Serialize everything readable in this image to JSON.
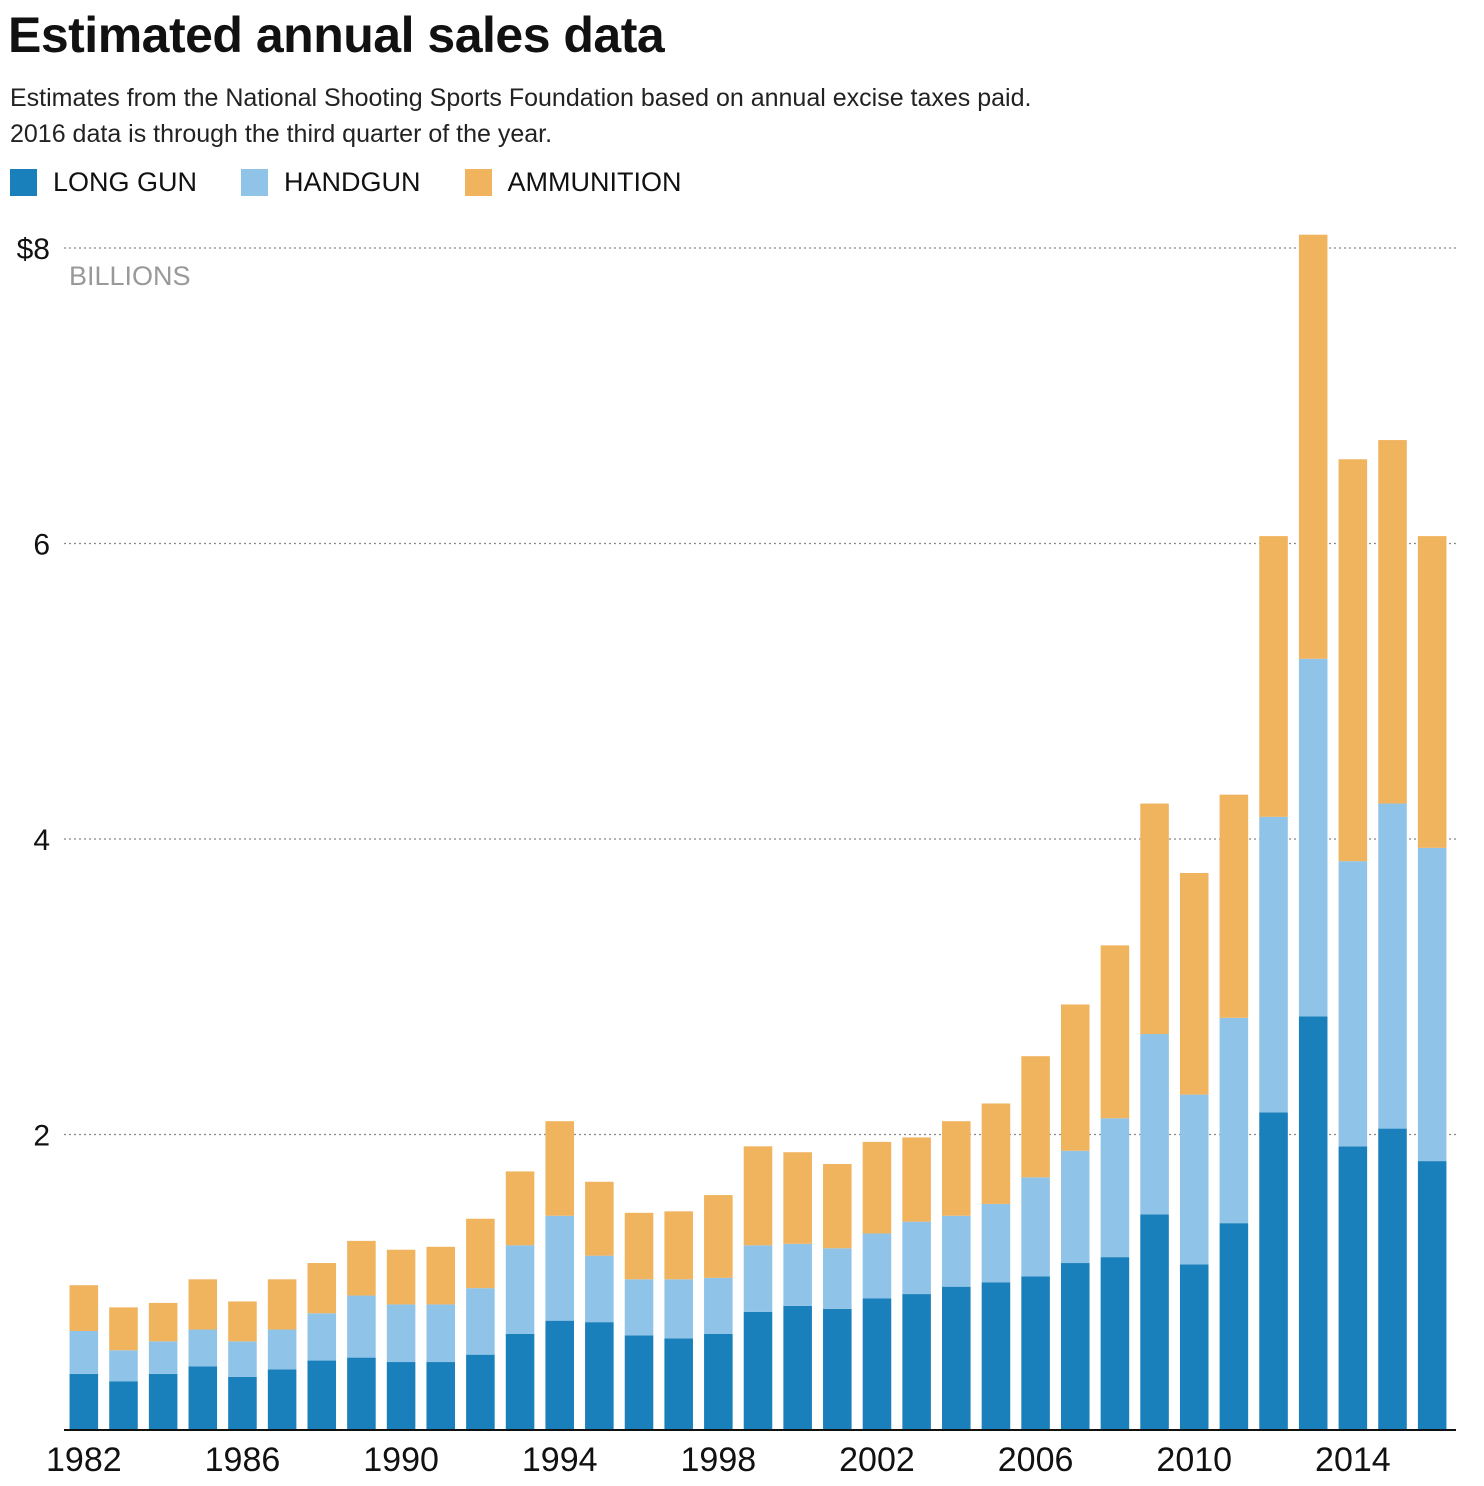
{
  "header": {
    "title": "Estimated annual sales data",
    "subtitle_line1": "Estimates from the National Shooting Sports Foundation based on annual excise taxes paid.",
    "subtitle_line2": "2016 data is through the third quarter of the year."
  },
  "legend": [
    {
      "label": "LONG GUN",
      "color": "#1a80bb"
    },
    {
      "label": "HANDGUN",
      "color": "#8fc3e8"
    },
    {
      "label": "AMMUNITION",
      "color": "#f0b35e"
    }
  ],
  "chart_data": {
    "type": "bar",
    "stacked": true,
    "title": "Estimated annual sales data",
    "unit_label": "BILLIONS",
    "ylim": [
      0,
      8
    ],
    "yticks": [
      {
        "value": 8,
        "label": "$8"
      },
      {
        "value": 6,
        "label": "6"
      },
      {
        "value": 4,
        "label": "4"
      },
      {
        "value": 2,
        "label": "2"
      }
    ],
    "grid": true,
    "x_tick_labels": [
      "1982",
      "1986",
      "1990",
      "1994",
      "1998",
      "2002",
      "2006",
      "2010",
      "2014"
    ],
    "categories": [
      "1982",
      "1983",
      "1984",
      "1985",
      "1986",
      "1987",
      "1988",
      "1989",
      "1990",
      "1991",
      "1992",
      "1993",
      "1994",
      "1995",
      "1996",
      "1997",
      "1998",
      "1999",
      "2000",
      "2001",
      "2002",
      "2003",
      "2004",
      "2005",
      "2006",
      "2007",
      "2008",
      "2009",
      "2010",
      "2011",
      "2012",
      "2013",
      "2014",
      "2015",
      "2016"
    ],
    "series": [
      {
        "name": "LONG GUN",
        "color": "#1a80bb",
        "values": [
          0.38,
          0.33,
          0.38,
          0.43,
          0.36,
          0.41,
          0.47,
          0.49,
          0.46,
          0.46,
          0.51,
          0.65,
          0.74,
          0.73,
          0.64,
          0.62,
          0.65,
          0.8,
          0.84,
          0.82,
          0.89,
          0.92,
          0.97,
          1.0,
          1.04,
          1.13,
          1.17,
          1.46,
          1.12,
          1.4,
          2.15,
          2.8,
          1.92,
          2.04,
          1.82
        ]
      },
      {
        "name": "HANDGUN",
        "color": "#8fc3e8",
        "values": [
          0.29,
          0.21,
          0.22,
          0.25,
          0.24,
          0.27,
          0.32,
          0.42,
          0.39,
          0.39,
          0.45,
          0.6,
          0.71,
          0.45,
          0.38,
          0.4,
          0.38,
          0.45,
          0.42,
          0.41,
          0.44,
          0.49,
          0.48,
          0.53,
          0.67,
          0.76,
          0.94,
          1.22,
          1.15,
          1.39,
          2.0,
          2.42,
          1.93,
          2.2,
          2.12
        ]
      },
      {
        "name": "AMMUNITION",
        "color": "#f0b35e",
        "values": [
          0.31,
          0.29,
          0.26,
          0.34,
          0.27,
          0.34,
          0.34,
          0.37,
          0.37,
          0.39,
          0.47,
          0.5,
          0.64,
          0.5,
          0.45,
          0.46,
          0.56,
          0.67,
          0.62,
          0.57,
          0.62,
          0.57,
          0.64,
          0.68,
          0.82,
          0.99,
          1.17,
          1.56,
          1.5,
          1.51,
          1.9,
          2.87,
          2.72,
          2.46,
          2.11
        ]
      }
    ]
  }
}
